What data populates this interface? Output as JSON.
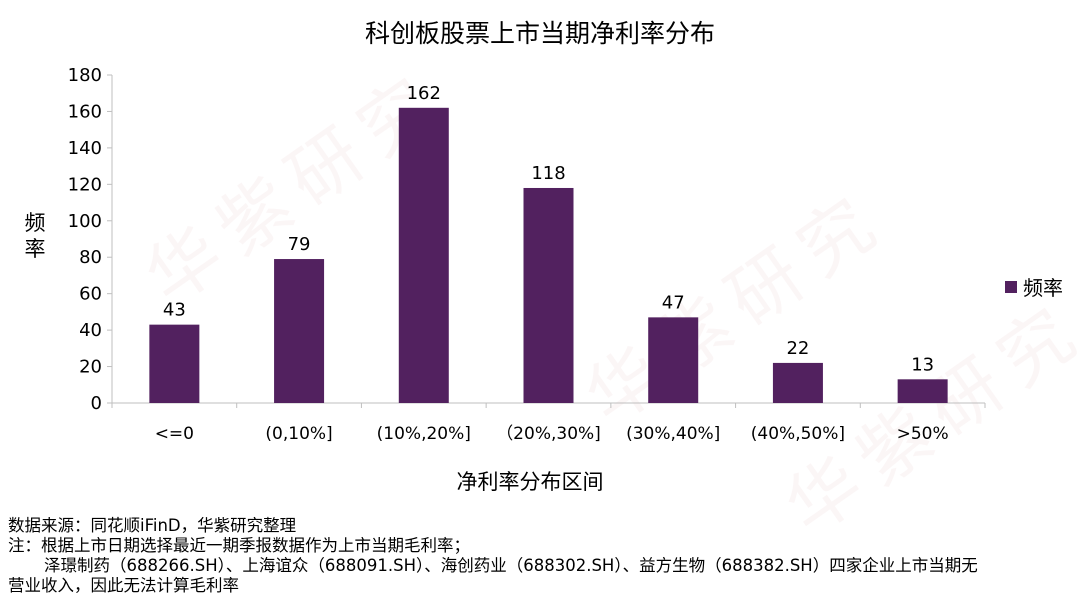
{
  "watermark": "华紫研究",
  "legend": {
    "label": "频率"
  },
  "notes": {
    "source": "数据来源：同花顺iFinD，华紫研究整理",
    "note_line1": "注：根据上市日期选择最近一期季报数据作为上市当期毛利率；",
    "note_line2": "泽璟制药（688266.SH）、上海谊众（688091.SH）、海创药业（688302.SH）、益方生物（688382.SH）四家企业上市当期无",
    "note_line3": "营业收入，因此无法计算毛利率"
  },
  "chart_data": {
    "type": "bar",
    "title": "科创板股票上市当期净利率分布",
    "xlabel": "净利率分布区间",
    "ylabel": "频率",
    "categories": [
      "<=0",
      "(0,10%]",
      "(10%,20%]",
      "（20%,30%]",
      "(30%,40%]",
      "(40%,50%]",
      ">50%"
    ],
    "series": [
      {
        "name": "频率",
        "values": [
          43,
          79,
          162,
          118,
          47,
          22,
          13
        ]
      }
    ],
    "ylim": [
      0,
      180
    ],
    "yticks": [
      0,
      20,
      40,
      60,
      80,
      100,
      120,
      140,
      160,
      180
    ],
    "data_labels": true,
    "grid": false,
    "legend_position": "right",
    "colors": {
      "bar": "#52215f",
      "axis": "#bfbfbf"
    }
  }
}
